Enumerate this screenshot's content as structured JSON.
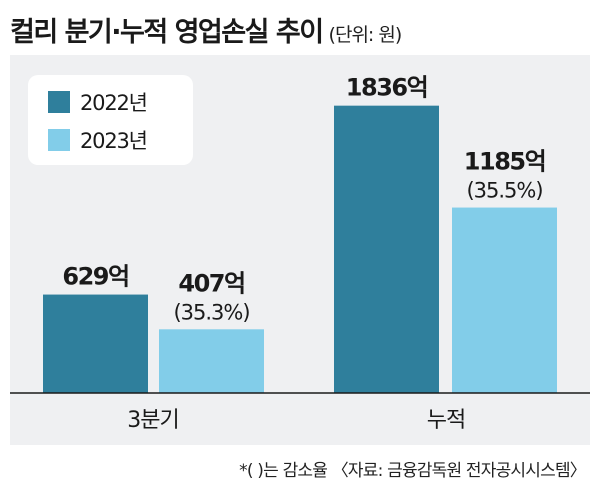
{
  "header": {
    "title": "컬리 분기·누적 영업손실 추이",
    "unit": "(단위: 원)"
  },
  "colors": {
    "series_2022": "#2f7f9c",
    "series_2023": "#82cde9",
    "panel_bg": "#eff0f2"
  },
  "chart_data": {
    "type": "bar",
    "title": "컬리 분기·누적 영업손실 추이",
    "unit": "원",
    "categories": [
      "3분기",
      "누적"
    ],
    "series": [
      {
        "name": "2022년",
        "values": [
          629,
          1836
        ],
        "labels": [
          "629억",
          "1836억"
        ]
      },
      {
        "name": "2023년",
        "values": [
          407,
          1185
        ],
        "labels": [
          "407억",
          "1185억"
        ],
        "change_labels": [
          "(35.3%)",
          "(35.5%)"
        ]
      }
    ],
    "ylim": [
      0,
      2000
    ],
    "grid": false,
    "legend": "top-left"
  },
  "footnote": "*(  )는 감소율 〈자료: 금융감독원 전자공시시스템〉"
}
